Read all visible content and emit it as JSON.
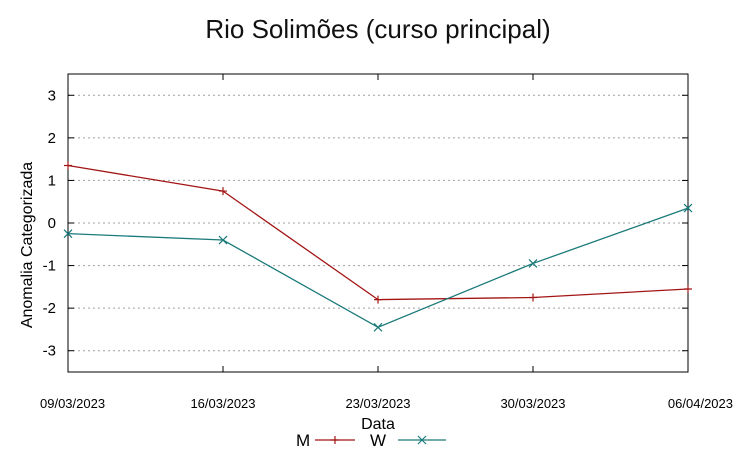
{
  "chart_data": {
    "type": "line",
    "title": "Rio Solimões (curso principal)",
    "xlabel": "Data",
    "ylabel": "Anomalia Categorizada",
    "categories": [
      "09/03/2023",
      "16/03/2023",
      "23/03/2023",
      "30/03/2023",
      "06/04/2023"
    ],
    "yticks": [
      "3",
      "2",
      "1",
      "0",
      "-1",
      "-2",
      "-3"
    ],
    "ylim": [
      -3.5,
      3.5
    ],
    "grid": true,
    "legend_position": "bottom-center",
    "series": [
      {
        "name": "M",
        "color": "#a31515",
        "marker": "+",
        "values": [
          1.35,
          0.75,
          -1.8,
          -1.75,
          -1.55
        ]
      },
      {
        "name": "W",
        "color": "#1b7a7a",
        "marker": "x",
        "values": [
          -0.25,
          -0.4,
          -2.45,
          -0.95,
          0.35
        ]
      }
    ]
  }
}
